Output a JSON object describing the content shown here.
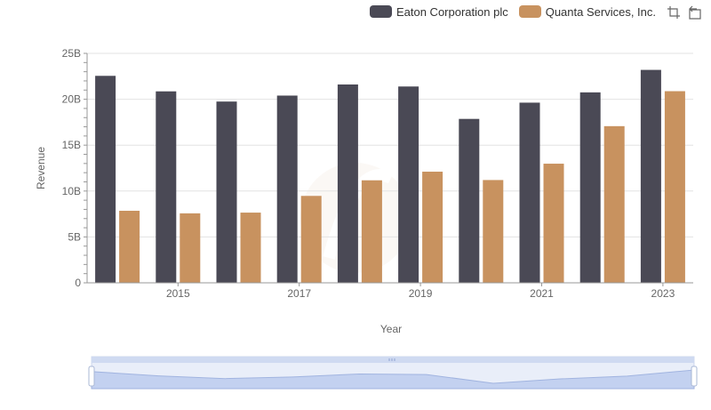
{
  "legend": {
    "items": [
      {
        "label": "Eaton Corporation plc",
        "color": "#4a4955"
      },
      {
        "label": "Quanta Services, Inc.",
        "color": "#c8925f"
      }
    ]
  },
  "toolbar": {
    "icons": [
      "zoom-icon",
      "restore-icon"
    ]
  },
  "chart_data": {
    "type": "bar",
    "xlabel": "Year",
    "ylabel": "Revenue",
    "categories": [
      "2014",
      "2015",
      "2016",
      "2017",
      "2018",
      "2019",
      "2020",
      "2021",
      "2022",
      "2023"
    ],
    "x_tick_labels": [
      "2015",
      "2017",
      "2019",
      "2021",
      "2023"
    ],
    "y_tick_labels": [
      "0",
      "5B",
      "10B",
      "15B",
      "20B",
      "25B"
    ],
    "ylim": [
      0,
      25000000000
    ],
    "grid": true,
    "legend_position": "top-right",
    "series": [
      {
        "name": "Eaton Corporation plc",
        "color": "#4a4955",
        "values": [
          22550000000,
          20860000000,
          19750000000,
          20400000000,
          21610000000,
          21390000000,
          17860000000,
          19630000000,
          20750000000,
          23200000000
        ]
      },
      {
        "name": "Quanta Services, Inc.",
        "color": "#c8925f",
        "values": [
          7850000000,
          7570000000,
          7650000000,
          9470000000,
          11170000000,
          12110000000,
          11200000000,
          12980000000,
          17070000000,
          20880000000
        ]
      }
    ],
    "data_zoom": {
      "start": 0,
      "end": 100
    }
  }
}
